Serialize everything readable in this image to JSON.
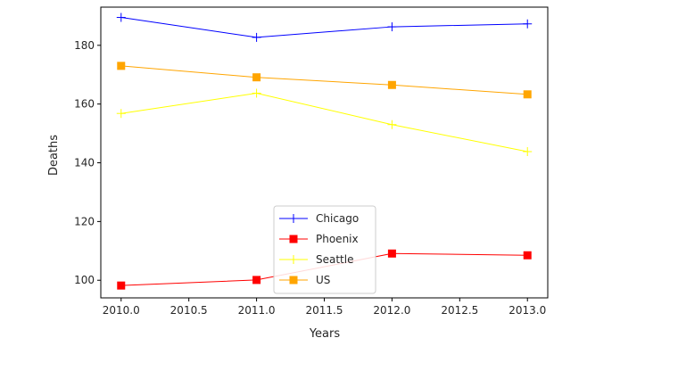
{
  "chart_data": {
    "type": "line",
    "xlabel": "Years",
    "ylabel": "Deaths",
    "x": [
      2010.0,
      2011.0,
      2012.0,
      2013.0
    ],
    "xlim": [
      2009.85,
      2013.15
    ],
    "ylim": [
      94,
      193
    ],
    "xticks": [
      2010.0,
      2010.5,
      2011.0,
      2011.5,
      2012.0,
      2012.5,
      2013.0
    ],
    "xtick_labels": [
      "2010.0",
      "2010.5",
      "2011.0",
      "2011.5",
      "2012.0",
      "2012.5",
      "2013.0"
    ],
    "yticks": [
      100,
      120,
      140,
      160,
      180
    ],
    "ytick_labels": [
      "100",
      "120",
      "140",
      "160",
      "180"
    ],
    "grid": false,
    "legend_placement": "lower-center",
    "series": [
      {
        "name": "Chicago",
        "values": [
          189.5,
          182.7,
          186.3,
          187.3
        ],
        "color": "#0000ff",
        "marker": "plus"
      },
      {
        "name": "Phoenix",
        "values": [
          98.2,
          100.1,
          109.1,
          108.5
        ],
        "color": "#ff0000",
        "marker": "square"
      },
      {
        "name": "Seattle",
        "values": [
          156.8,
          163.7,
          153.0,
          143.8
        ],
        "color": "#ffff00",
        "marker": "plus"
      },
      {
        "name": "US",
        "values": [
          173.0,
          169.1,
          166.5,
          163.3
        ],
        "color": "#ffa500",
        "marker": "square"
      }
    ]
  }
}
